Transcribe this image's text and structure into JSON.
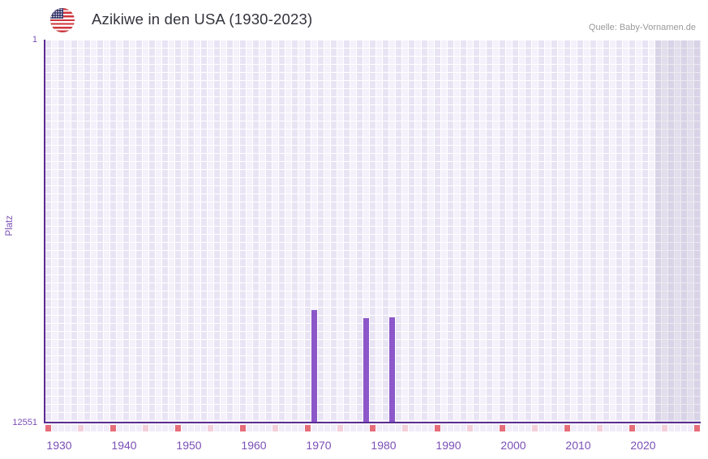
{
  "header": {
    "title": "Azikiwe in den USA (1930-2023)",
    "source": "Quelle: Baby-Vornamen.de",
    "flag_icon": "usa-flag"
  },
  "chart_data": {
    "type": "bar",
    "title": "Azikiwe in den USA (1930-2023)",
    "xlabel": "",
    "ylabel": "Platz",
    "grid": "on",
    "legend": "none",
    "y_axis": {
      "min": 1,
      "max": 12551,
      "inverted": true,
      "tick_labels": [
        "1",
        "12551"
      ]
    },
    "x_axis": {
      "grid_start": 1930,
      "grid_end": 2030,
      "data_start": 1930,
      "data_end": 2023,
      "future_start": 2024,
      "tick_labels": [
        "1930",
        "1940",
        "1950",
        "1960",
        "1970",
        "1980",
        "1990",
        "2000",
        "2010",
        "2020"
      ]
    },
    "series": [
      {
        "name": "Platz",
        "points": [
          {
            "year": 1971,
            "rank": 8850
          },
          {
            "year": 1979,
            "rank": 9120
          },
          {
            "year": 1983,
            "rank": 9090
          }
        ]
      }
    ],
    "colors": {
      "bar": "#8c57c9",
      "axis": "#5c2d91",
      "tick_label": "#7a4fb5",
      "grid_cell_a": "#e9e4f4",
      "grid_cell_b": "#f4f1fb",
      "future_overlay": "rgba(108,102,138,0.13)",
      "ruler_decade": "#e56e79",
      "ruler_half_decade": "#f2cfd9",
      "ruler_base": "#f0ecf8",
      "title_text": "#33333d",
      "source_text": "#9a9a9a"
    }
  }
}
